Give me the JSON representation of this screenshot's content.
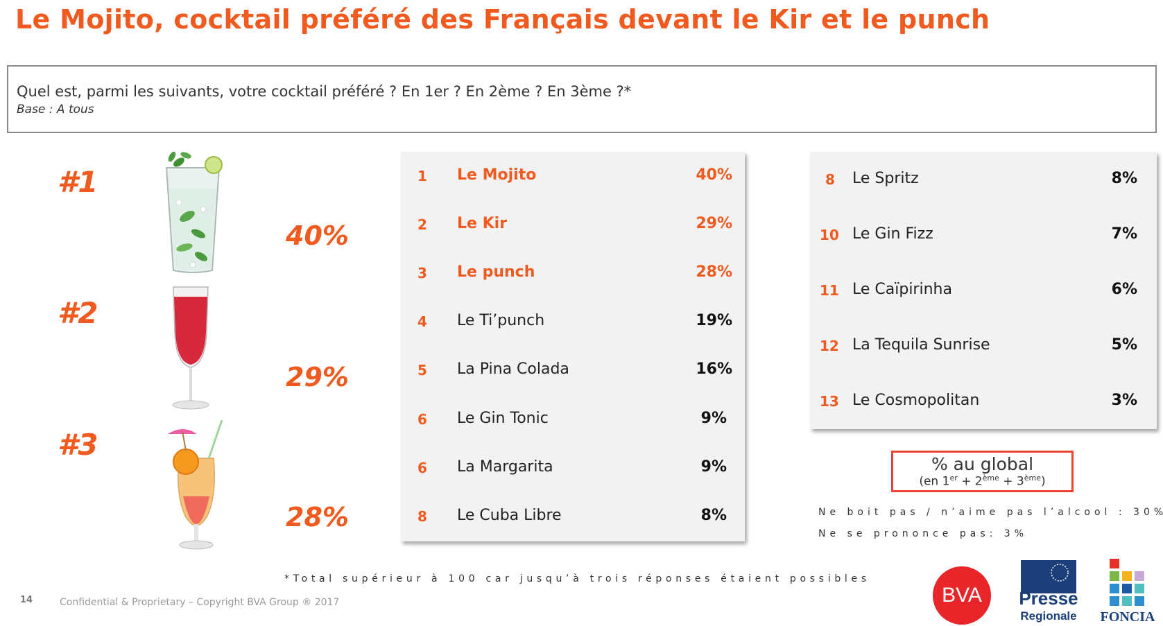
{
  "title": "Le Mojito, cocktail préféré des Français devant le Kir et le punch",
  "question": "Quel est, parmi les suivants, votre cocktail préféré ? En 1er ? En 2ème ? En 3ème ?*",
  "base": "Base : A tous",
  "podium": [
    {
      "rank": "#1",
      "pct": "40%",
      "drink": "mojito"
    },
    {
      "rank": "#2",
      "pct": "29%",
      "drink": "kir"
    },
    {
      "rank": "#3",
      "pct": "28%",
      "drink": "punch"
    }
  ],
  "left_list": [
    {
      "num": "1",
      "name": "Le Mojito",
      "pct": "40%",
      "highlight": true
    },
    {
      "num": "2",
      "name": "Le Kir",
      "pct": "29%",
      "highlight": true
    },
    {
      "num": "3",
      "name": "Le punch",
      "pct": "28%",
      "highlight": true
    },
    {
      "num": "4",
      "name": "Le Ti’punch",
      "pct": "19%",
      "highlight": false
    },
    {
      "num": "5",
      "name": "La Pina Colada",
      "pct": "16%",
      "highlight": false
    },
    {
      "num": "6",
      "name": "Le Gin Tonic",
      "pct": "9%",
      "highlight": false
    },
    {
      "num": "6",
      "name": "La Margarita",
      "pct": "9%",
      "highlight": false
    },
    {
      "num": "8",
      "name": "Le Cuba Libre",
      "pct": "8%",
      "highlight": false
    }
  ],
  "right_list": [
    {
      "num": "8",
      "name": "Le Spritz",
      "pct": "8%"
    },
    {
      "num": "10",
      "name": "Le Gin Fizz",
      "pct": "7%"
    },
    {
      "num": "11",
      "name": "Le Caïpirinha",
      "pct": "6%"
    },
    {
      "num": "12",
      "name": "La Tequila Sunrise",
      "pct": "5%"
    },
    {
      "num": "13",
      "name": "Le Cosmopolitan",
      "pct": "3%"
    }
  ],
  "legend": {
    "title": "% au global",
    "sub_open": "(en 1",
    "sup1": "er",
    "plus1": " + 2",
    "sup2": "ème",
    "plus2": " + 3",
    "sup3": "ème",
    "sub_close": ")"
  },
  "notes": {
    "no_alcohol": "Ne boit pas / n’aime pas l’alcool : 30%",
    "no_answer": "Ne se prononce pas: 3%",
    "total": "*Total supérieur à 100 car jusqu’à trois réponses étaient possibles"
  },
  "footer": {
    "page": "14",
    "copyright": "Confidential & Proprietary – Copyright BVA Group ®  2017"
  },
  "logos": {
    "bva": "BVA",
    "presse_line1": "Presse",
    "presse_line2": "Regionale",
    "foncia": "FONCIA"
  },
  "colors": {
    "accent": "#f05a1e",
    "panel_bg": "#f2f2f2",
    "legend_border": "#e8432e",
    "bva_red": "#e8262a",
    "presse_blue": "#1c3f7a"
  }
}
